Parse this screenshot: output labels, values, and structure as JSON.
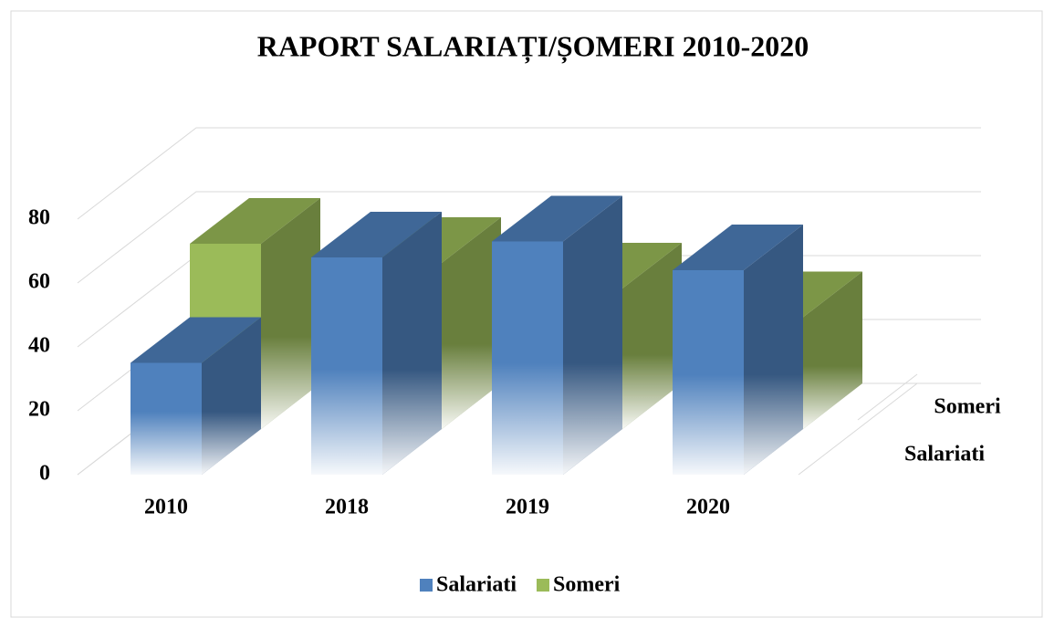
{
  "chart_data": {
    "type": "bar3d",
    "title": "RAPORT SALARIAȚI/ȘOMERI 2010-2020",
    "categories": [
      "2010",
      "2018",
      "2019",
      "2020"
    ],
    "series": [
      {
        "name": "Salariati",
        "color": "#4f81bd",
        "values": [
          35,
          68,
          73,
          64
        ]
      },
      {
        "name": "Someri",
        "color": "#9bbb59",
        "values": [
          58,
          52,
          44,
          35
        ]
      }
    ],
    "ylim": [
      0,
      80
    ],
    "yticks": [
      0,
      20,
      40,
      60,
      80
    ],
    "grid": true,
    "legend": "bottom"
  }
}
